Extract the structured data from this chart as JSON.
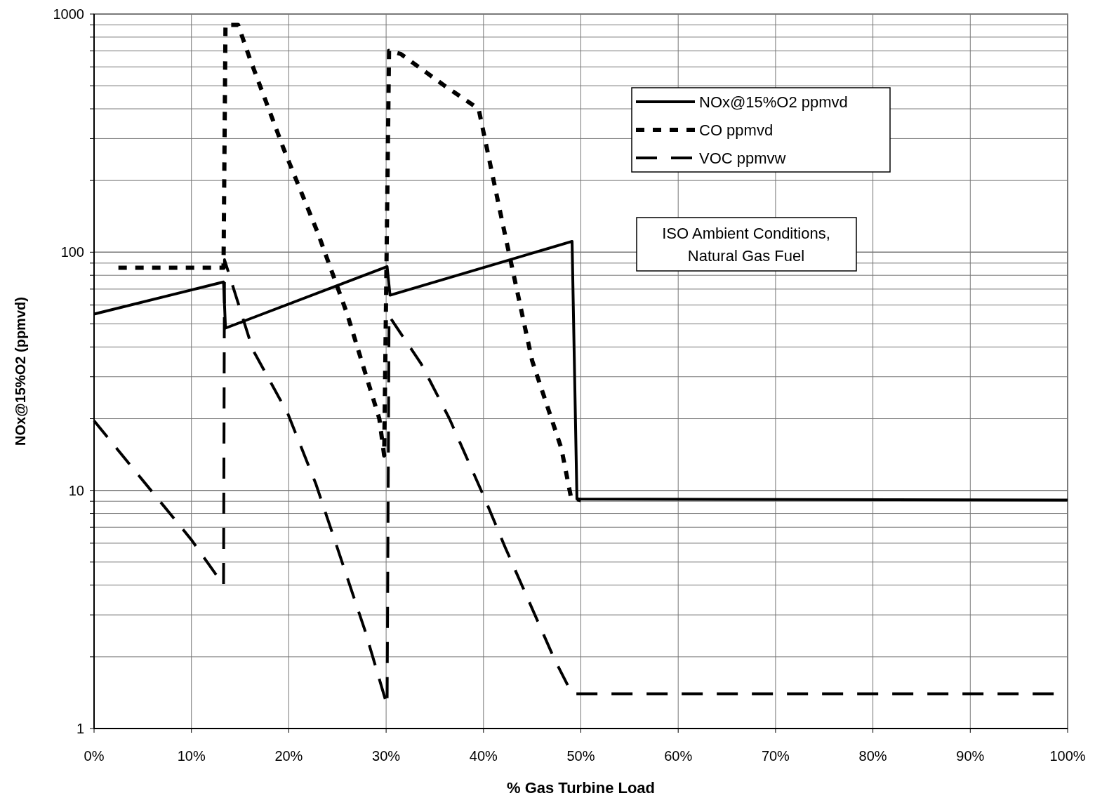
{
  "chart_data": {
    "type": "line",
    "xlabel": "% Gas Turbine Load",
    "ylabel": "NOx@15%O2 (ppmvd)",
    "log": "y",
    "grid": true,
    "legend": "top right",
    "marker": "none",
    "xlim": [
      0,
      100
    ],
    "xticks": [
      {
        "value": 0,
        "label": "0%"
      },
      {
        "value": 10,
        "label": "10%"
      },
      {
        "value": 20,
        "label": "20%"
      },
      {
        "value": 30,
        "label": "30%"
      },
      {
        "value": 40,
        "label": "40%"
      },
      {
        "value": 50,
        "label": "50%"
      },
      {
        "value": 60,
        "label": "60%"
      },
      {
        "value": 70,
        "label": "70%"
      },
      {
        "value": 80,
        "label": "80%"
      },
      {
        "value": 90,
        "label": "90%"
      },
      {
        "value": 100,
        "label": "100%"
      }
    ],
    "ylim": [
      1,
      1000
    ],
    "yticks": [
      1,
      {
        "value": 2,
        "label": null
      },
      {
        "value": 3,
        "label": null
      },
      {
        "value": 4,
        "label": null
      },
      {
        "value": 5,
        "label": null
      },
      {
        "value": 6,
        "label": null
      },
      {
        "value": 7,
        "label": null
      },
      {
        "value": 8,
        "label": null
      },
      {
        "value": 9,
        "label": null
      },
      10,
      {
        "value": 20,
        "label": null
      },
      {
        "value": 30,
        "label": null
      },
      {
        "value": 40,
        "label": null
      },
      {
        "value": 50,
        "label": null
      },
      {
        "value": 60,
        "label": null
      },
      {
        "value": 70,
        "label": null
      },
      {
        "value": 80,
        "label": null
      },
      {
        "value": 90,
        "label": null
      },
      100,
      {
        "value": 200,
        "label": null
      },
      {
        "value": 300,
        "label": null
      },
      {
        "value": 400,
        "label": null
      },
      {
        "value": 500,
        "label": null
      },
      {
        "value": 600,
        "label": null
      },
      {
        "value": 700,
        "label": null
      },
      {
        "value": 800,
        "label": null
      },
      {
        "value": 900,
        "label": null
      },
      1000
    ],
    "annotations": [
      "ISO Ambient Conditions,\nNatural Gas Fuel"
    ],
    "series": [
      {
        "name": "NOx@15%O2 ppmvd",
        "color": "#000000",
        "line_style": "solid",
        "x": [
          0,
          13.3,
          13.5,
          30.1,
          30.4,
          49.1,
          49.6,
          100
        ],
        "values": [
          55,
          75,
          48,
          87,
          66,
          111,
          9.2,
          9.1
        ]
      },
      {
        "name": "CO ppmvd",
        "color": "#000000",
        "line_style": "dotted",
        "x": [
          2.5,
          13.3,
          13.5,
          14.8,
          16,
          19.5,
          23,
          26,
          29.3,
          29.8,
          30.3,
          31.5,
          36,
          39.5,
          42,
          45,
          48,
          49,
          50
        ],
        "values": [
          86,
          86,
          900,
          900,
          650,
          270,
          120,
          55,
          20,
          14,
          700,
          680,
          500,
          400,
          130,
          35,
          15,
          9.3,
          9.1
        ]
      },
      {
        "name": "VOC ppmvw",
        "color": "#000000",
        "line_style": "dashed",
        "x": [
          0,
          10,
          13.3,
          13.4,
          16.3,
          19.9,
          22.8,
          27.8,
          30.1,
          30.3,
          33.6,
          36.5,
          40.1,
          42.2,
          47.3,
          49.1,
          100
        ],
        "values": [
          19.6,
          6.2,
          4,
          93,
          39,
          21,
          10.6,
          2.6,
          1.25,
          54,
          34,
          20,
          9.3,
          5.8,
          1.95,
          1.4,
          1.4
        ]
      }
    ]
  }
}
